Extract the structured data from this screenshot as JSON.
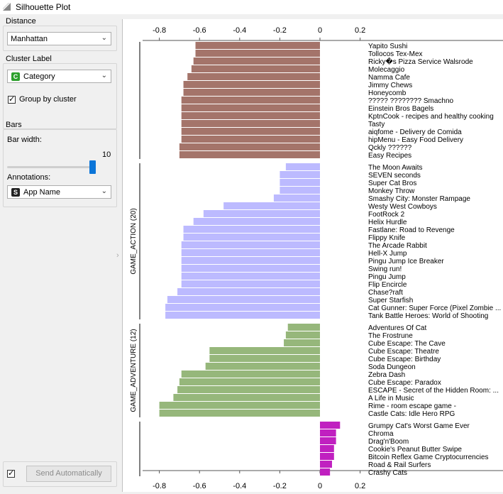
{
  "window": {
    "title": "Silhouette Plot"
  },
  "sidebar": {
    "distance": {
      "label": "Distance",
      "value": "Manhattan"
    },
    "cluster_label": {
      "label": "Cluster Label",
      "value": "Category",
      "badge_letter": "C",
      "badge_color": "#2ca02c"
    },
    "group_by_cluster": {
      "label": "Group by cluster",
      "checked": true
    },
    "bars": {
      "label": "Bars",
      "bar_width_label": "Bar width:",
      "bar_width_value": "10",
      "annotations_label": "Annotations:",
      "annotations_value": "App Name",
      "annotations_badge_letter": "S",
      "annotations_badge_color": "#222222"
    },
    "send_automatically": {
      "label": "Send Automatically",
      "checked": true
    }
  },
  "chart_data": {
    "type": "bar",
    "orientation": "horizontal",
    "xlim": [
      -0.9,
      0.25
    ],
    "x_ticks": [
      "-0.8",
      "-0.6",
      "-0.4",
      "-0.2",
      "0",
      "0.2"
    ],
    "x_tick_values": [
      -0.8,
      -0.6,
      -0.4,
      -0.2,
      0,
      0.2
    ],
    "clusters": [
      {
        "name": "",
        "color": "#a4746a",
        "labels": [
          "Yapito Sushi",
          "Tollocos Tex-Mex",
          "Ricky�s Pizza Service Walsrode",
          "Molecaggio",
          "Namma Cafe",
          "Jimmy Chews",
          "Honeycomb",
          "????? ???????? Smachno",
          "Einstein Bros Bagels",
          "KptnCook - recipes and healthy cooking",
          "Tasty",
          "aiqfome - Delivery de Comida",
          "hipMenu - Easy Food Delivery",
          "Qckly ??????",
          "Easy Recipes"
        ],
        "values": [
          -0.62,
          -0.62,
          -0.63,
          -0.64,
          -0.66,
          -0.68,
          -0.68,
          -0.69,
          -0.69,
          -0.69,
          -0.69,
          -0.69,
          -0.69,
          -0.7,
          -0.7
        ]
      },
      {
        "name": "GAME_ACTION (20)",
        "color": "#bcbaff",
        "labels": [
          "The Moon Awaits",
          "SEVEN seconds",
          "Super Cat Bros",
          "Monkey Throw",
          "Smashy City: Monster Rampage",
          "Westy West Cowboys",
          "FootRock 2",
          "Helix Hurdle",
          "Fastlane: Road to Revenge",
          "Flippy Knife",
          "The Arcade Rabbit",
          "Hell-X Jump",
          "Pingu Jump Ice Breaker",
          "Swing run!",
          "Pingu Jump",
          "Flip Encircle",
          "Chase?raft",
          "Super Starfish",
          "Cat Gunner: Super Force (Pixel Zombie ...",
          "Tank Battle Heroes: World of Shooting"
        ],
        "values": [
          -0.17,
          -0.2,
          -0.2,
          -0.2,
          -0.23,
          -0.48,
          -0.58,
          -0.63,
          -0.68,
          -0.68,
          -0.69,
          -0.69,
          -0.69,
          -0.69,
          -0.69,
          -0.69,
          -0.71,
          -0.76,
          -0.77,
          -0.77
        ]
      },
      {
        "name": "GAME_ADVENTURE (12)",
        "color": "#96b77b",
        "labels": [
          "Adventures Of Cat",
          "The Frostrune",
          "Cube Escape: The Cave",
          "Cube Escape: Theatre",
          "Cube Escape: Birthday",
          "Soda Dungeon",
          "Zebra Dash",
          "Cube Escape: Paradox",
          "ESCAPE - Secret of the Hidden Room: ...",
          "A Life in Music",
          "Rime - room escape game -",
          "Castle Cats:  Idle Hero RPG"
        ],
        "values": [
          -0.16,
          -0.17,
          -0.18,
          -0.55,
          -0.55,
          -0.57,
          -0.69,
          -0.7,
          -0.71,
          -0.73,
          -0.8,
          -0.8
        ]
      },
      {
        "name": "",
        "color": "#c020c0",
        "labels": [
          "Grumpy Cat's Worst Game Ever",
          "Chroma",
          "Drag'n'Boom",
          "Cookie's Peanut Butter Swipe",
          "Bitcoin Reflex Game Cryptocurrencies",
          "Road & Rail Surfers",
          "Crashy Cats"
        ],
        "values": [
          0.1,
          0.08,
          0.08,
          0.07,
          0.07,
          0.06,
          0.05
        ]
      }
    ]
  }
}
